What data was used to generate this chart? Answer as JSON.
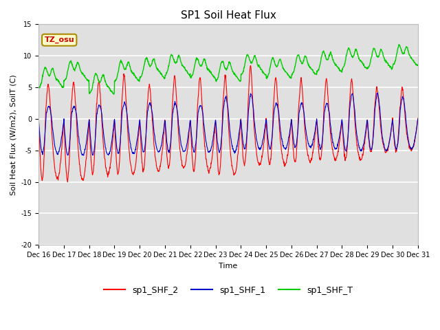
{
  "title": "SP1 Soil Heat Flux",
  "xlabel": "Time",
  "ylabel": "Soil Heat Flux (W/m2), SoilT (C)",
  "ylim": [
    -20,
    15
  ],
  "xtick_labels": [
    "Dec 16",
    "Dec 17",
    "Dec 18",
    "Dec 19",
    "Dec 20",
    "Dec 21",
    "Dec 22",
    "Dec 23",
    "Dec 24",
    "Dec 25",
    "Dec 26",
    "Dec 27",
    "Dec 28",
    "Dec 29",
    "Dec 30",
    "Dec 31"
  ],
  "legend_labels": [
    "sp1_SHF_2",
    "sp1_SHF_1",
    "sp1_SHF_T"
  ],
  "color_shf2": "#ff0000",
  "color_shf1": "#0000cc",
  "color_shft": "#00cc00",
  "tz_label": "TZ_osu",
  "tz_box_color": "#ffffcc",
  "tz_border_color": "#aa8800",
  "tz_text_color": "#cc0000",
  "background_color": "#ffffff",
  "plot_bg_color": "#e0e0e0",
  "grid_color": "#ffffff",
  "title_fontsize": 11,
  "axis_label_fontsize": 8,
  "tick_fontsize": 7,
  "legend_fontsize": 9,
  "yticks": [
    -20,
    -15,
    -10,
    -5,
    0,
    5,
    10,
    15
  ],
  "n_days": 15,
  "n_per_day": 96
}
